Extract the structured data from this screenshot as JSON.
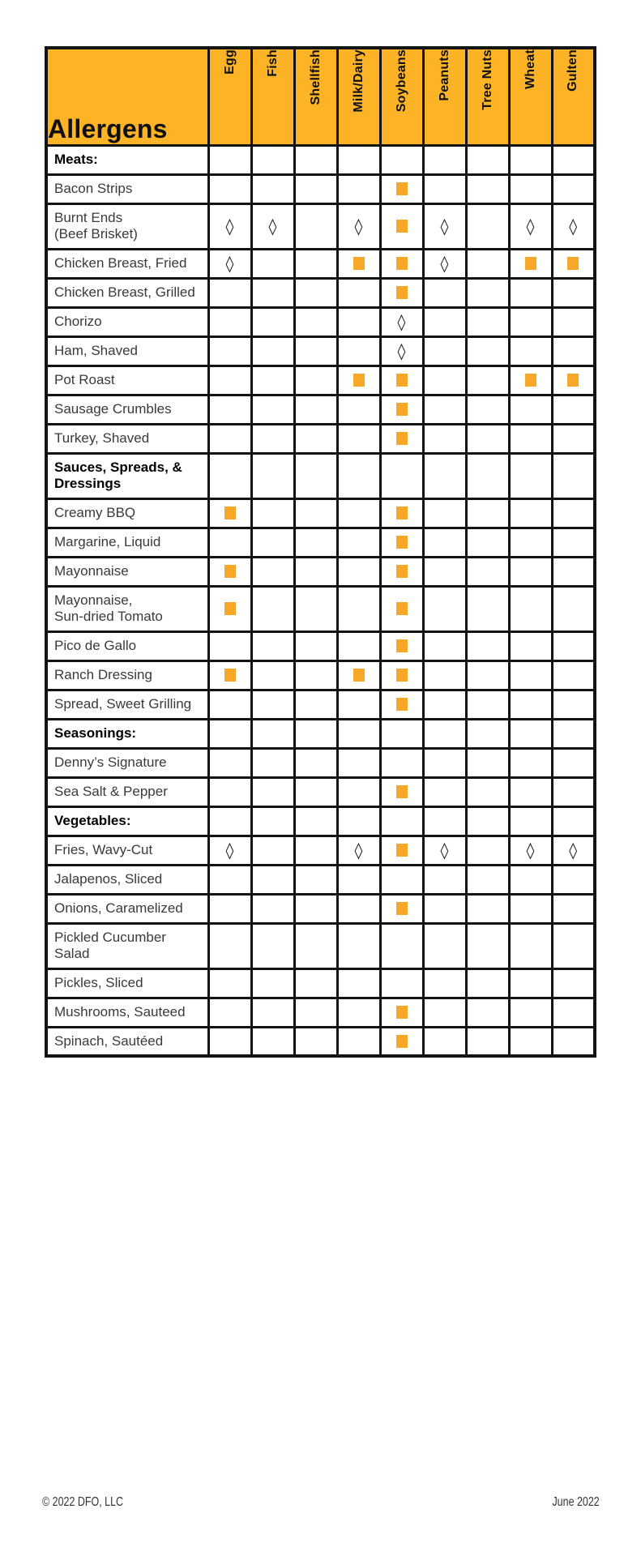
{
  "colors": {
    "header_bg": "#FCB426",
    "marker": "#F7A72A",
    "border": "#141414"
  },
  "table": {
    "title": "Allergens",
    "columns": [
      "Egg",
      "Fish",
      "Shellfish",
      "Milk/Dairy",
      "Soybeans",
      "Peanuts",
      "Tree Nuts",
      "Wheat",
      "Gulten"
    ],
    "rows": [
      {
        "type": "section",
        "lines": [
          "Meats:"
        ],
        "marks": [
          "",
          "",
          "",
          "",
          "",
          "",
          "",
          "",
          ""
        ]
      },
      {
        "type": "item",
        "lines": [
          "Bacon Strips"
        ],
        "marks": [
          "",
          "",
          "",
          "",
          "square",
          "",
          "",
          "",
          ""
        ]
      },
      {
        "type": "item",
        "lines": [
          "Burnt Ends",
          "(Beef Brisket)"
        ],
        "marks": [
          "diamond",
          "diamond",
          "",
          "diamond",
          "square",
          "diamond",
          "",
          "diamond",
          "diamond"
        ]
      },
      {
        "type": "item",
        "lines": [
          "Chicken Breast, Fried"
        ],
        "marks": [
          "diamond",
          "",
          "",
          "square",
          "square",
          "diamond",
          "",
          "square",
          "square"
        ]
      },
      {
        "type": "item",
        "lines": [
          "Chicken Breast, Grilled"
        ],
        "marks": [
          "",
          "",
          "",
          "",
          "square",
          "",
          "",
          "",
          ""
        ]
      },
      {
        "type": "item",
        "lines": [
          "Chorizo"
        ],
        "marks": [
          "",
          "",
          "",
          "",
          "diamond",
          "",
          "",
          "",
          ""
        ]
      },
      {
        "type": "item",
        "lines": [
          "Ham, Shaved"
        ],
        "marks": [
          "",
          "",
          "",
          "",
          "diamond",
          "",
          "",
          "",
          ""
        ]
      },
      {
        "type": "item",
        "lines": [
          "Pot Roast"
        ],
        "marks": [
          "",
          "",
          "",
          "square",
          "square",
          "",
          "",
          "square",
          "square"
        ]
      },
      {
        "type": "item",
        "lines": [
          "Sausage Crumbles"
        ],
        "marks": [
          "",
          "",
          "",
          "",
          "square",
          "",
          "",
          "",
          ""
        ]
      },
      {
        "type": "item",
        "lines": [
          "Turkey, Shaved"
        ],
        "marks": [
          "",
          "",
          "",
          "",
          "square",
          "",
          "",
          "",
          ""
        ]
      },
      {
        "type": "section",
        "lines": [
          "Sauces, Spreads, &",
          "Dressings"
        ],
        "marks": [
          "",
          "",
          "",
          "",
          "",
          "",
          "",
          "",
          ""
        ]
      },
      {
        "type": "item",
        "lines": [
          "Creamy BBQ"
        ],
        "marks": [
          "square",
          "",
          "",
          "",
          "square",
          "",
          "",
          "",
          ""
        ]
      },
      {
        "type": "item",
        "lines": [
          "Margarine, Liquid"
        ],
        "marks": [
          "",
          "",
          "",
          "",
          "square",
          "",
          "",
          "",
          ""
        ]
      },
      {
        "type": "item",
        "lines": [
          "Mayonnaise"
        ],
        "marks": [
          "square",
          "",
          "",
          "",
          "square",
          "",
          "",
          "",
          ""
        ]
      },
      {
        "type": "item",
        "lines": [
          "Mayonnaise,",
          "Sun-dried Tomato"
        ],
        "marks": [
          "square",
          "",
          "",
          "",
          "square",
          "",
          "",
          "",
          ""
        ]
      },
      {
        "type": "item",
        "lines": [
          "Pico de Gallo"
        ],
        "marks": [
          "",
          "",
          "",
          "",
          "square",
          "",
          "",
          "",
          ""
        ]
      },
      {
        "type": "item",
        "lines": [
          "Ranch Dressing"
        ],
        "marks": [
          "square",
          "",
          "",
          "square",
          "square",
          "",
          "",
          "",
          ""
        ]
      },
      {
        "type": "item",
        "lines": [
          "Spread, Sweet Grilling"
        ],
        "marks": [
          "",
          "",
          "",
          "",
          "square",
          "",
          "",
          "",
          ""
        ]
      },
      {
        "type": "section",
        "lines": [
          "Seasonings:"
        ],
        "marks": [
          "",
          "",
          "",
          "",
          "",
          "",
          "",
          "",
          ""
        ]
      },
      {
        "type": "item",
        "lines": [
          "Denny’s Signature"
        ],
        "marks": [
          "",
          "",
          "",
          "",
          "",
          "",
          "",
          "",
          ""
        ]
      },
      {
        "type": "item",
        "lines": [
          "Sea Salt & Pepper"
        ],
        "marks": [
          "",
          "",
          "",
          "",
          "square",
          "",
          "",
          "",
          ""
        ]
      },
      {
        "type": "section",
        "lines": [
          "Vegetables:"
        ],
        "marks": [
          "",
          "",
          "",
          "",
          "",
          "",
          "",
          "",
          ""
        ]
      },
      {
        "type": "item",
        "lines": [
          "Fries, Wavy-Cut"
        ],
        "marks": [
          "diamond",
          "",
          "",
          "diamond",
          "square",
          "diamond",
          "",
          "diamond",
          "diamond"
        ]
      },
      {
        "type": "item",
        "lines": [
          "Jalapenos, Sliced"
        ],
        "marks": [
          "",
          "",
          "",
          "",
          "",
          "",
          "",
          "",
          ""
        ]
      },
      {
        "type": "item",
        "lines": [
          "Onions, Caramelized"
        ],
        "marks": [
          "",
          "",
          "",
          "",
          "square",
          "",
          "",
          "",
          ""
        ]
      },
      {
        "type": "item",
        "lines": [
          "Pickled Cucumber",
          "Salad"
        ],
        "marks": [
          "",
          "",
          "",
          "",
          "",
          "",
          "",
          "",
          ""
        ]
      },
      {
        "type": "item",
        "lines": [
          "Pickles, Sliced"
        ],
        "marks": [
          "",
          "",
          "",
          "",
          "",
          "",
          "",
          "",
          ""
        ]
      },
      {
        "type": "item",
        "lines": [
          "Mushrooms, Sauteed"
        ],
        "marks": [
          "",
          "",
          "",
          "",
          "square",
          "",
          "",
          "",
          ""
        ]
      },
      {
        "type": "item",
        "lines": [
          "Spinach, Sautéed"
        ],
        "marks": [
          "",
          "",
          "",
          "",
          "square",
          "",
          "",
          "",
          ""
        ]
      }
    ]
  },
  "footer": {
    "copyright": "© 2022 DFO, LLC",
    "date": "June 2022"
  }
}
